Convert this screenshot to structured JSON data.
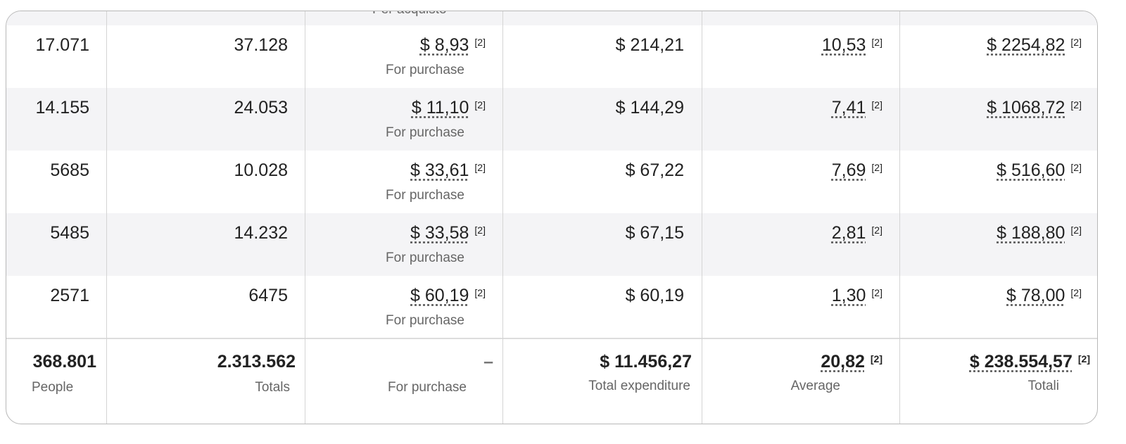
{
  "header_clipped_label": "Per acquisto",
  "rows": [
    {
      "people": "17.071",
      "totals": "37.128",
      "per_purchase": "$ 8,93",
      "note": "[2]",
      "sub": "For purchase",
      "expenditure": "$ 214,21",
      "average": "10,53",
      "total": "$ 2254,82"
    },
    {
      "people": "14.155",
      "totals": "24.053",
      "per_purchase": "$ 11,10",
      "note": "[2]",
      "sub": "For purchase",
      "expenditure": "$ 144,29",
      "average": "7,41",
      "total": "$ 1068,72"
    },
    {
      "people": "5685",
      "totals": "10.028",
      "per_purchase": "$ 33,61",
      "note": "[2]",
      "sub": "For purchase",
      "expenditure": "$ 67,22",
      "average": "7,69",
      "total": "$ 516,60"
    },
    {
      "people": "5485",
      "totals": "14.232",
      "per_purchase": "$ 33,58",
      "note": "[2]",
      "sub": "For purchase",
      "expenditure": "$ 67,15",
      "average": "2,81",
      "total": "$ 188,80"
    },
    {
      "people": "2571",
      "totals": "6475",
      "per_purchase": "$ 60,19",
      "note": "[2]",
      "sub": "For purchase",
      "expenditure": "$ 60,19",
      "average": "1,30",
      "total": "$ 78,00"
    }
  ],
  "totals": {
    "people": "368.801",
    "people_label": "People",
    "totals": "2.313.562",
    "totals_label": "Totals",
    "per_purchase": "–",
    "per_purchase_label": "For purchase",
    "expenditure": "$ 11.456,27",
    "expenditure_label": "Total expenditure",
    "average": "20,82",
    "average_label": "Average",
    "total": "$ 238.554,57",
    "total_label": "Totali",
    "note": "[2]"
  }
}
